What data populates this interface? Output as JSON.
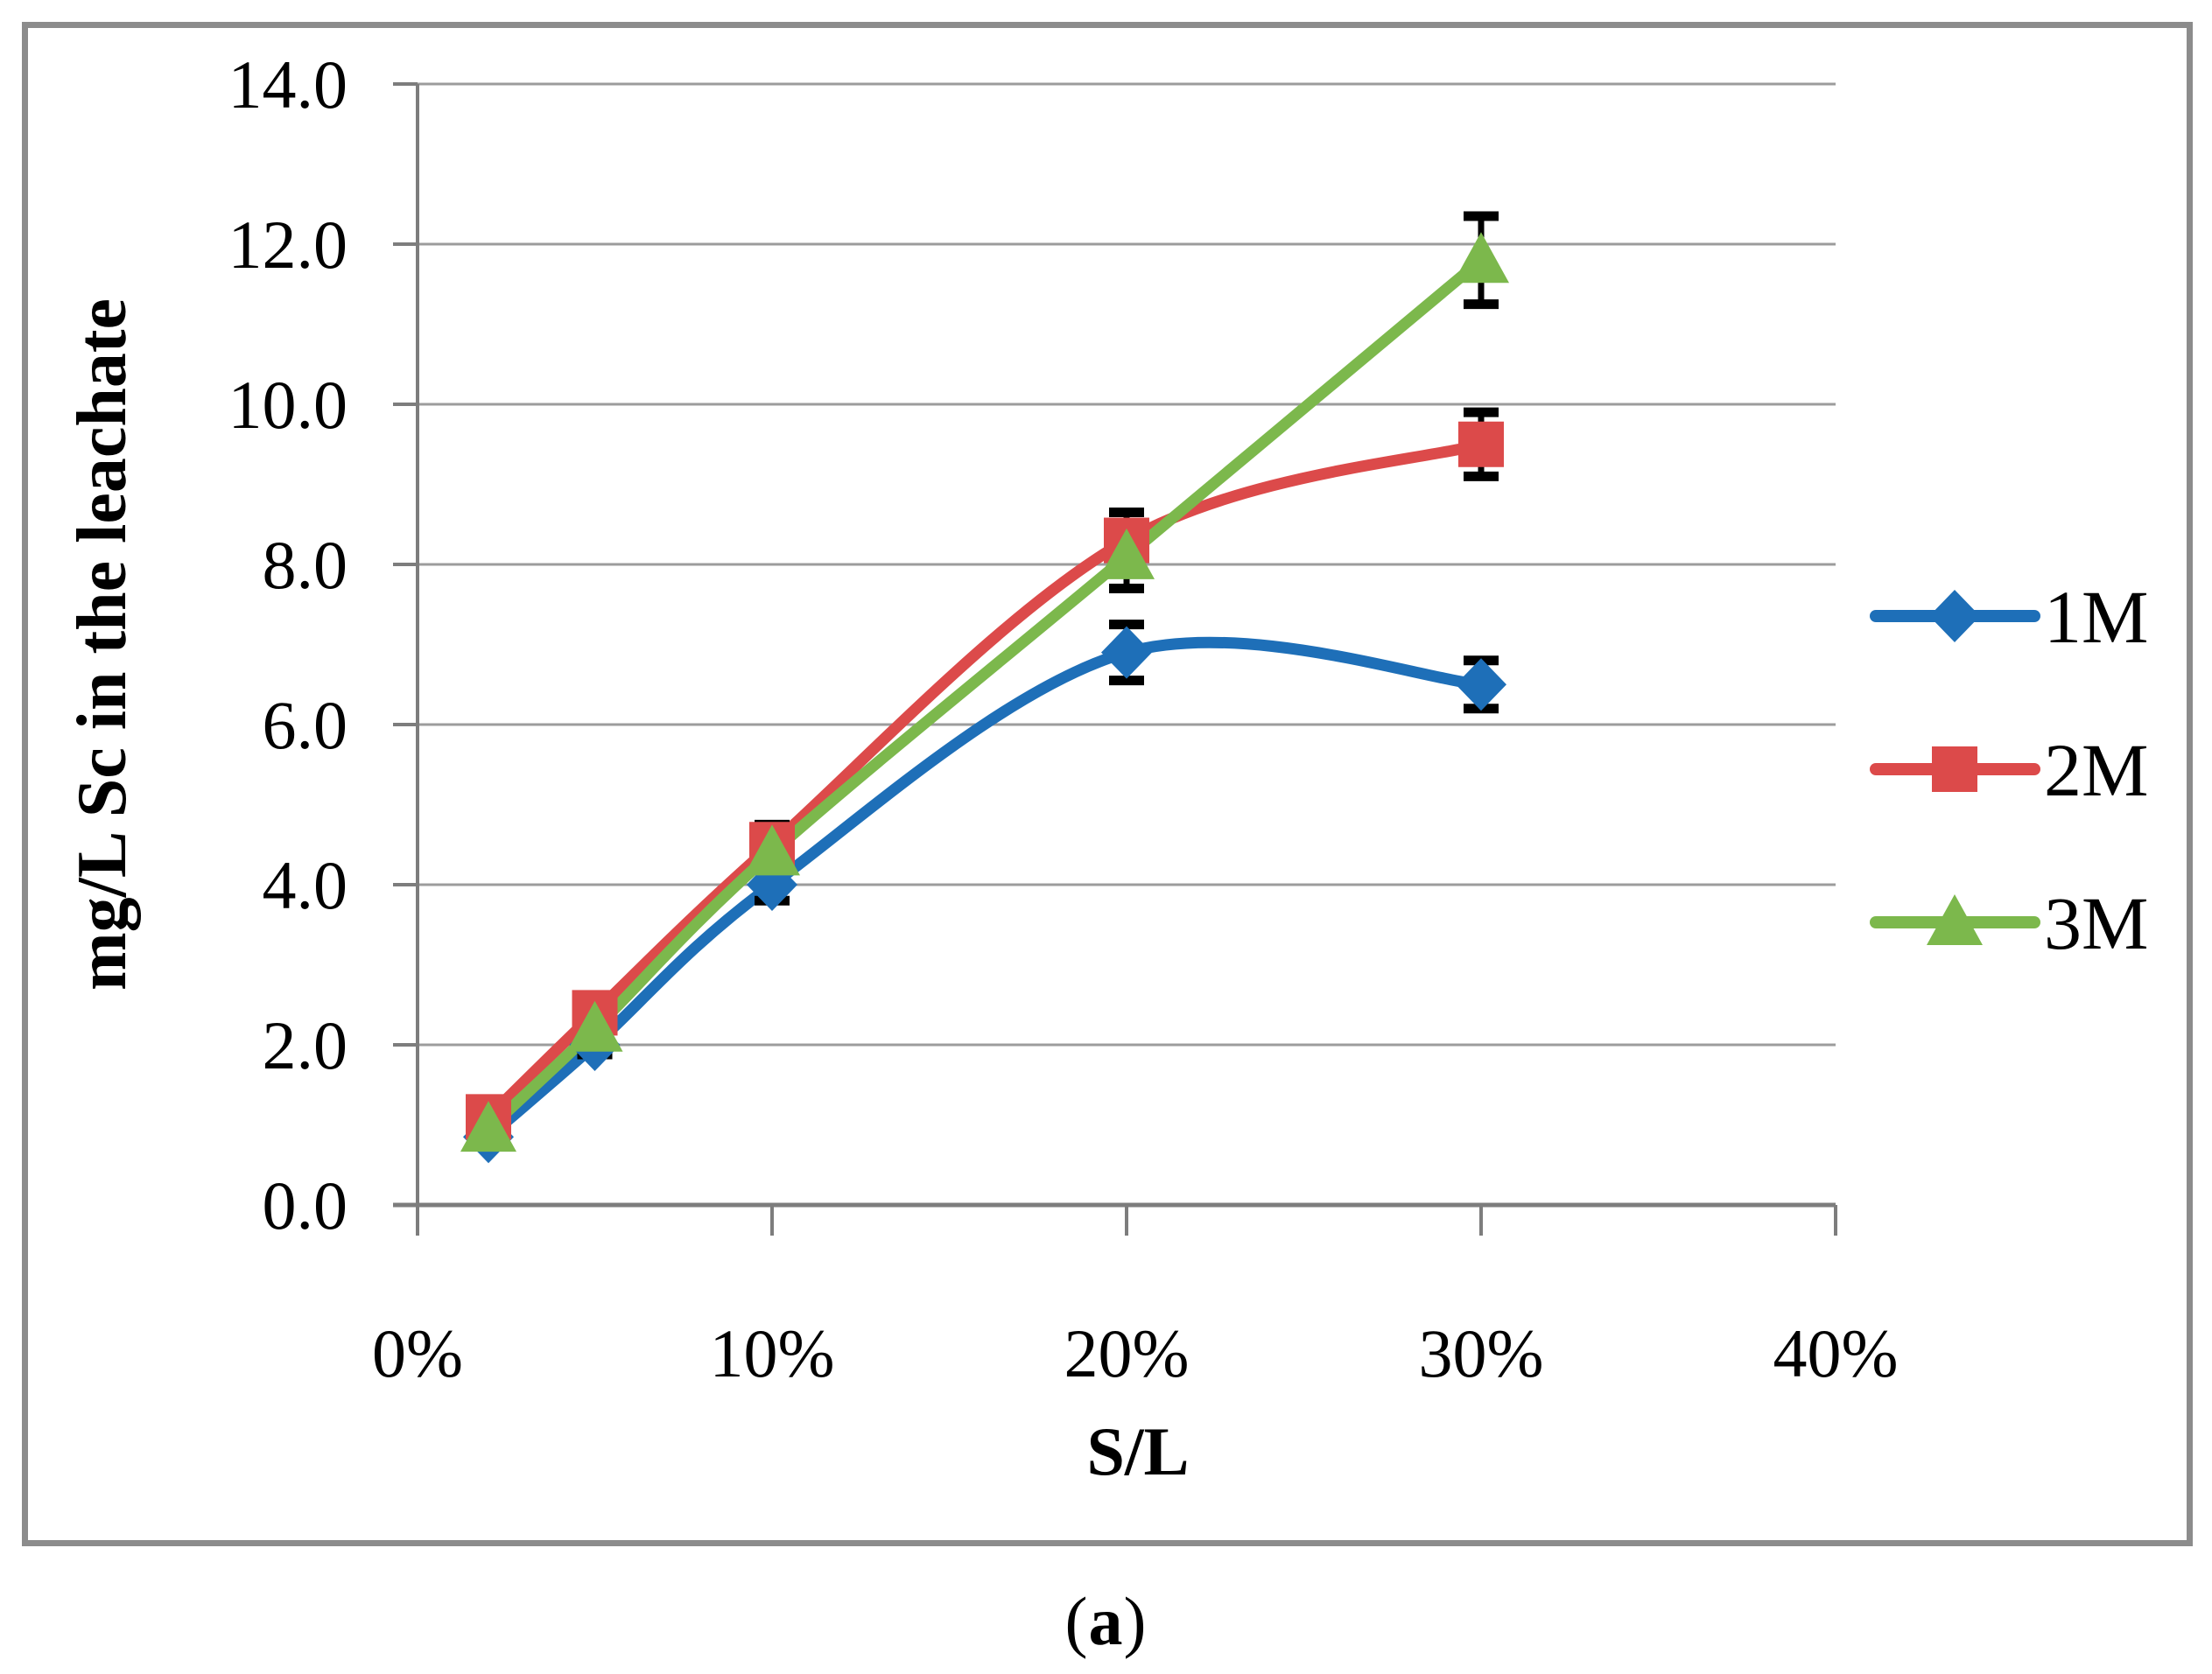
{
  "figure": {
    "caption": {
      "open": "(",
      "letter": "a",
      "close": ")"
    }
  },
  "chart_data": {
    "type": "line",
    "smoothed": true,
    "title": "",
    "xlabel": "S/L",
    "ylabel": "mg/L Sc in the leachate",
    "xlim": [
      0,
      40
    ],
    "ylim": [
      0,
      14
    ],
    "grid": true,
    "legend_position": "right",
    "x": [
      2,
      5,
      10,
      20,
      30
    ],
    "series": [
      {
        "name": "1M",
        "color": "#1E6FB8",
        "marker": "diamond",
        "values": [
          0.85,
          2.0,
          4.0,
          6.9,
          6.5
        ],
        "errors": [
          0.1,
          0.12,
          0.2,
          0.35,
          0.3
        ]
      },
      {
        "name": "2M",
        "color": "#DC4A4A",
        "marker": "square",
        "values": [
          1.1,
          2.4,
          4.5,
          8.3,
          9.5
        ],
        "errors": [
          0.1,
          0.12,
          0.25,
          0.35,
          0.4
        ]
      },
      {
        "name": "3M",
        "color": "#7CB84C",
        "marker": "triangle",
        "values": [
          0.95,
          2.2,
          4.4,
          8.1,
          11.8
        ],
        "errors": [
          0.1,
          0.12,
          0.2,
          0.4,
          0.55
        ]
      }
    ],
    "x_ticks": [
      {
        "v": 0,
        "label": "0%"
      },
      {
        "v": 10,
        "label": "10%"
      },
      {
        "v": 20,
        "label": "20%"
      },
      {
        "v": 30,
        "label": "30%"
      },
      {
        "v": 40,
        "label": "40%"
      }
    ],
    "y_ticks": [
      {
        "v": 0,
        "label": "0.0"
      },
      {
        "v": 2,
        "label": "2.0"
      },
      {
        "v": 4,
        "label": "4.0"
      },
      {
        "v": 6,
        "label": "6.0"
      },
      {
        "v": 8,
        "label": "8.0"
      },
      {
        "v": 10,
        "label": "10.0"
      },
      {
        "v": 12,
        "label": "12.0"
      },
      {
        "v": 14,
        "label": "14.0"
      }
    ],
    "colors": {
      "gridline": "#9C9C9C",
      "axis": "#7D7D7D",
      "error_bar": "#000000",
      "frame": "#8C8C8C",
      "text": "#000000"
    }
  }
}
